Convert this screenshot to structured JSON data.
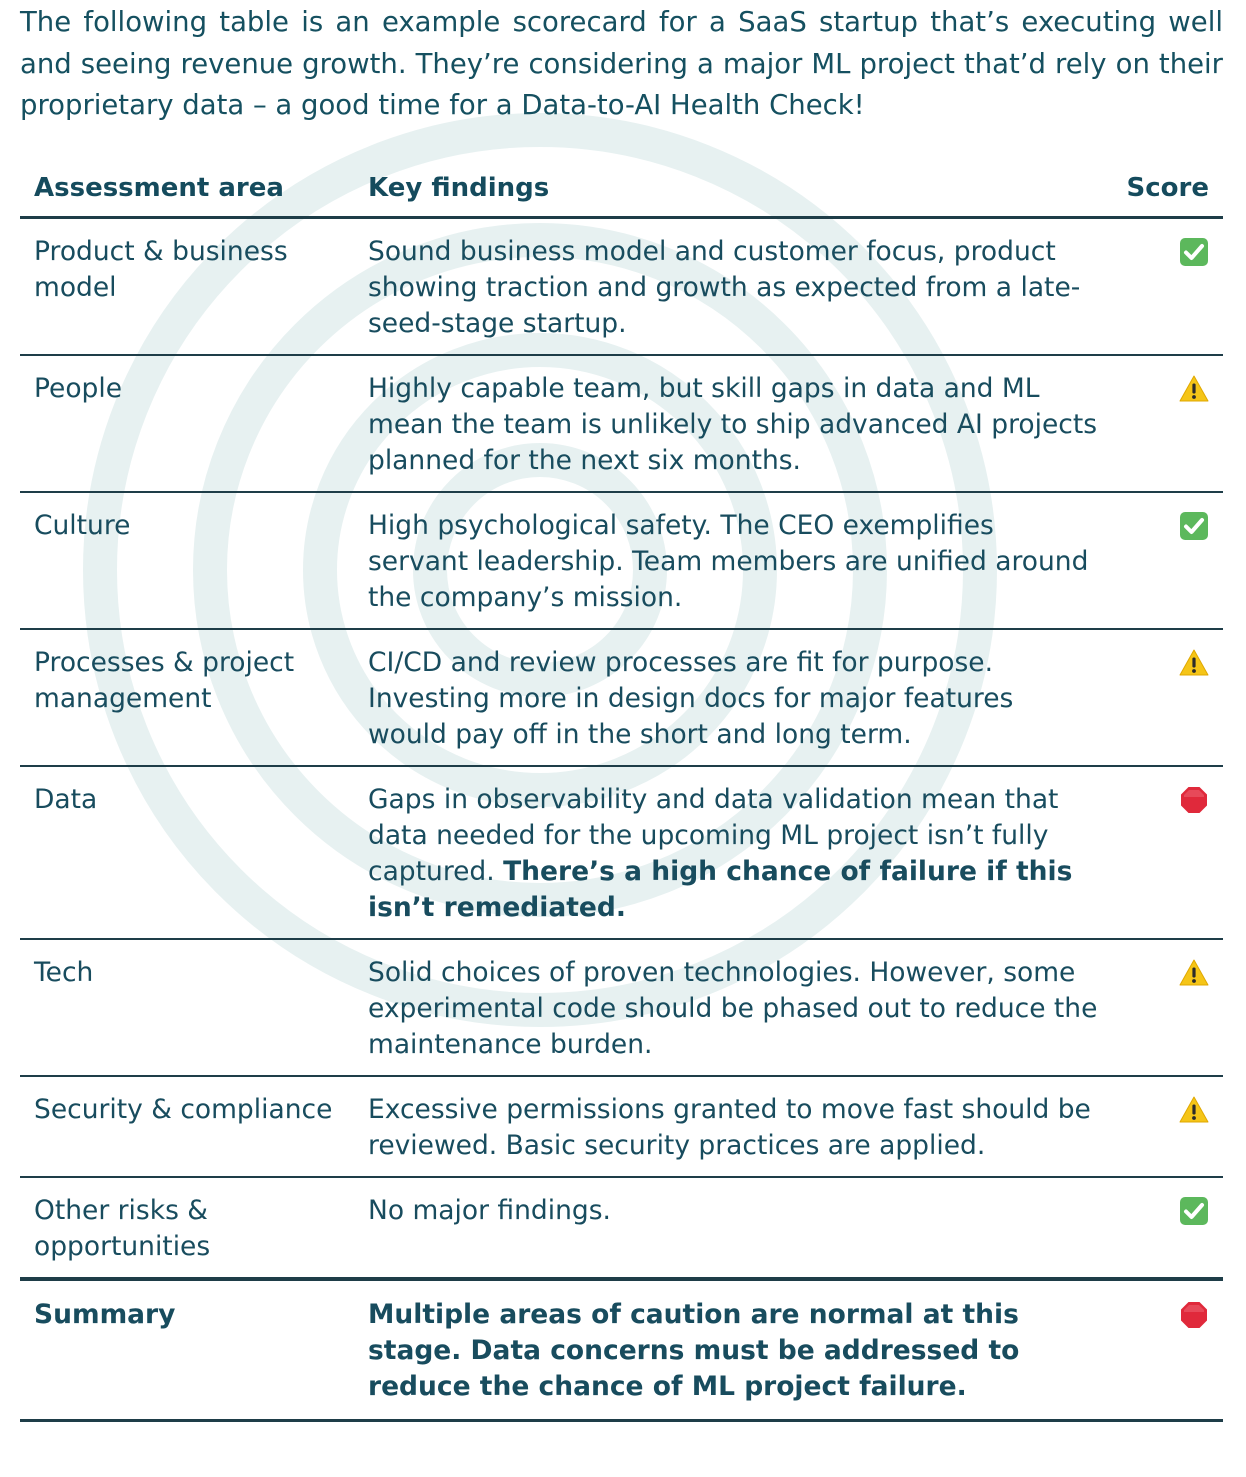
{
  "intro": "The following table is an example scorecard for a SaaS startup that’s executing well and seeing revenue growth. They’re considering a major ML project that’d rely on their proprietary data – a good time for a Data-to-AI Health Check!",
  "table": {
    "headers": {
      "area": "Assessment area",
      "findings": "Key findings",
      "score": "Score"
    },
    "rows": [
      {
        "area": "Product & business model",
        "findings": "Sound business model and customer focus, product showing traction and growth as expected from a late-seed-stage startup.",
        "findings_bold": "",
        "score": "check-icon"
      },
      {
        "area": "People",
        "findings": "Highly capable team, but skill gaps in data and ML mean the team is unlikely to ship advanced AI projects planned for the next six months.",
        "findings_bold": "",
        "score": "warning-icon"
      },
      {
        "area": "Culture",
        "findings": "High psychological safety. The CEO exemplifies servant leadership. Team members are unified around the company’s mission.",
        "findings_bold": "",
        "score": "check-icon"
      },
      {
        "area": "Processes & project management",
        "findings": "CI/CD and review processes are fit for purpose. Investing more in design docs for major features would pay off in the short and long term.",
        "findings_bold": "",
        "score": "warning-icon"
      },
      {
        "area": "Data",
        "findings": "Gaps in observability and data validation mean that data needed for the upcoming ML project isn’t fully captured. ",
        "findings_bold": "There’s a high chance of failure if this isn’t remediated.",
        "score": "stop-icon"
      },
      {
        "area": "Tech",
        "findings": "Solid choices of proven technologies. However, some experimental code should be phased out to reduce the maintenance burden.",
        "findings_bold": "",
        "score": "warning-icon"
      },
      {
        "area": "Security & compliance",
        "findings": "Excessive permissions granted to move fast should be reviewed. Basic security practices are applied.",
        "findings_bold": "",
        "score": "warning-icon"
      },
      {
        "area": "Other risks & opportunities",
        "findings": "No major findings.",
        "findings_bold": "",
        "score": "check-icon"
      }
    ],
    "summary": {
      "area": "Summary",
      "findings": "Multiple areas of caution are normal at this stage. Data concerns must be addressed to reduce the chance of ML project failure.",
      "score": "stop-icon"
    }
  },
  "colors": {
    "text": "#184c5e",
    "rule": "#1e3d48",
    "check": "#5cb85c",
    "warning": "#f5c518",
    "stop": "#e0293b"
  }
}
